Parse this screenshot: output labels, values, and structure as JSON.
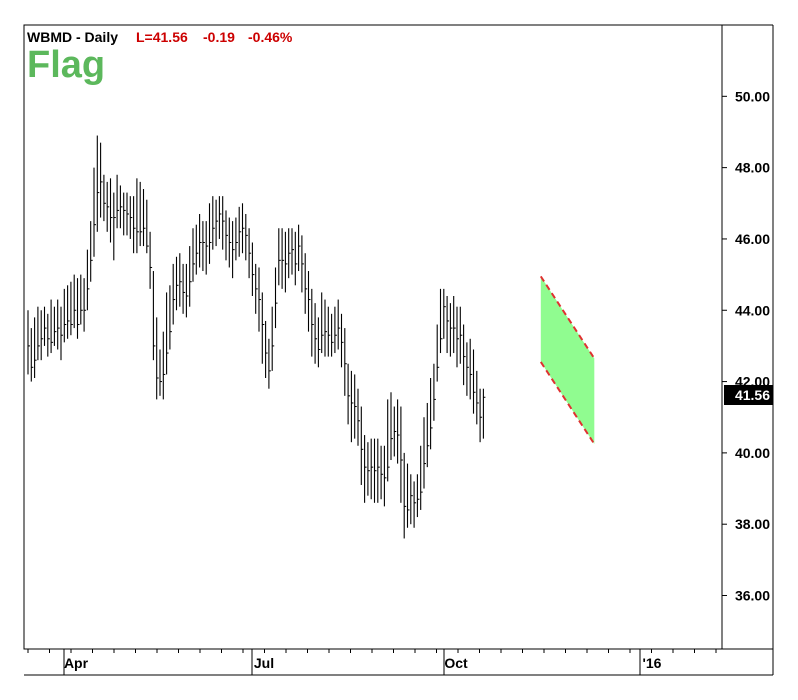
{
  "header": {
    "ticker": "WBMD - Daily",
    "last": "L=41.56",
    "change": "-0.19",
    "change_pct": "-0.46%"
  },
  "pattern_label": "Flag",
  "chart_data": {
    "type": "ohlc",
    "title": "WBMD - Daily",
    "xlabel": "",
    "ylabel": "",
    "ylim": [
      34.5,
      52.0
    ],
    "y_ticks": [
      "36.00",
      "38.00",
      "40.00",
      "42.00",
      "44.00",
      "46.00",
      "48.00",
      "50.00"
    ],
    "x_ticks": [
      "Apr",
      "Jul",
      "Oct",
      "'16"
    ],
    "last_price": "41.56",
    "grid": false,
    "colors": {
      "bars": "#000000",
      "flag_fill": "#7CFC7C",
      "flag_lines": "#e03030",
      "label": "#5cb85c",
      "header_red": "#cc0000"
    },
    "flag": {
      "upper": [
        44.95,
        42.65
      ],
      "lower": [
        42.55,
        40.25
      ],
      "start_bar": 156,
      "end_bar": 171
    },
    "bars": [
      [
        43,
        44,
        42.2
      ],
      [
        42.4,
        43.5,
        42
      ],
      [
        42.6,
        43.8,
        42.1
      ],
      [
        43,
        44.1,
        42.6
      ],
      [
        43.2,
        44,
        42.6
      ],
      [
        43.5,
        44.1,
        43
      ],
      [
        43.2,
        43.9,
        42.7
      ],
      [
        43.1,
        44.3,
        42.8
      ],
      [
        43.4,
        44.1,
        43
      ],
      [
        43.5,
        44.3,
        42.9
      ],
      [
        43.3,
        44.1,
        42.6
      ],
      [
        43.6,
        44.6,
        43.1
      ],
      [
        43.7,
        44.7,
        43.2
      ],
      [
        43.6,
        44.8,
        43.3
      ],
      [
        44,
        45,
        43.5
      ],
      [
        43.6,
        44.9,
        43.2
      ],
      [
        44,
        45,
        43.6
      ],
      [
        44,
        44.9,
        43.4
      ],
      [
        44.6,
        45.7,
        44
      ],
      [
        45.4,
        46.5,
        44.8
      ],
      [
        46.4,
        48,
        45.5
      ],
      [
        47.3,
        48.9,
        46.2
      ],
      [
        47.6,
        48.7,
        46.6
      ],
      [
        47,
        47.8,
        46.5
      ],
      [
        46.9,
        47.6,
        46.2
      ],
      [
        46.6,
        47.7,
        45.9
      ],
      [
        46.6,
        47.3,
        45.4
      ],
      [
        46.8,
        47.8,
        46.3
      ],
      [
        46.9,
        47.5,
        46.3
      ],
      [
        46.8,
        47.3,
        46.1
      ],
      [
        46.7,
        47.3,
        46.1
      ],
      [
        46.6,
        47.2,
        46
      ],
      [
        46.3,
        47.2,
        45.6
      ],
      [
        46.2,
        47.7,
        45.6
      ],
      [
        46.2,
        47.6,
        45.8
      ],
      [
        46.3,
        47.4,
        45.8
      ],
      [
        45.8,
        47.1,
        45.6
      ],
      [
        45.2,
        46.2,
        44.6
      ],
      [
        43,
        45.1,
        42.6
      ],
      [
        42.1,
        43.8,
        41.5
      ],
      [
        42,
        42.9,
        41.6
      ],
      [
        42.2,
        43.4,
        41.5
      ],
      [
        42.8,
        44.5,
        42.2
      ],
      [
        43.4,
        44.7,
        42.9
      ],
      [
        44.3,
        45.3,
        43.6
      ],
      [
        44.7,
        45.5,
        44
      ],
      [
        44.8,
        45.6,
        44.1
      ],
      [
        44.5,
        45.3,
        43.9
      ],
      [
        44.4,
        45.3,
        43.8
      ],
      [
        44.8,
        45.8,
        44.1
      ],
      [
        45.3,
        46.3,
        44.8
      ],
      [
        45.6,
        46.4,
        45
      ],
      [
        45.9,
        46.7,
        45.2
      ],
      [
        45.9,
        46.5,
        45.1
      ],
      [
        45.8,
        46.5,
        45
      ],
      [
        45.9,
        47,
        45.3
      ],
      [
        46.3,
        47.2,
        45.7
      ],
      [
        46.5,
        47.1,
        45.8
      ],
      [
        46.7,
        47.2,
        46
      ],
      [
        46.5,
        47.2,
        45.7
      ],
      [
        46.1,
        46.8,
        45.4
      ],
      [
        45.9,
        46.6,
        45.2
      ],
      [
        45.7,
        46.5,
        44.9
      ],
      [
        45.9,
        46.6,
        45.4
      ],
      [
        46.2,
        46.9,
        45.5
      ],
      [
        46.3,
        47,
        45.6
      ],
      [
        46.1,
        46.7,
        45.4
      ],
      [
        45.6,
        46.3,
        44.9
      ],
      [
        45,
        45.9,
        44.4
      ],
      [
        44.6,
        45.3,
        43.9
      ],
      [
        44.3,
        45.2,
        43.4
      ],
      [
        43.6,
        44.5,
        42.5
      ],
      [
        42.8,
        43.7,
        42.1
      ],
      [
        42.3,
        43.2,
        41.8
      ],
      [
        43,
        44.1,
        42.3
      ],
      [
        44.2,
        45.2,
        43.5
      ],
      [
        45.4,
        46.3,
        44.7
      ],
      [
        45.4,
        46.3,
        44.6
      ],
      [
        45.3,
        46.2,
        44.5
      ],
      [
        45.6,
        46.3,
        44.9
      ],
      [
        45.7,
        46.3,
        45
      ],
      [
        45.3,
        46.2,
        44.7
      ],
      [
        45.8,
        46.4,
        45.1
      ],
      [
        45.3,
        46.1,
        44.5
      ],
      [
        44.6,
        45.6,
        43.9
      ],
      [
        44.3,
        45.1,
        43.4
      ],
      [
        43.6,
        44.6,
        42.7
      ],
      [
        43.2,
        44.2,
        42.5
      ],
      [
        42.9,
        43.8,
        42.4
      ],
      [
        43.3,
        44.5,
        42.8
      ],
      [
        43.4,
        44.3,
        42.7
      ],
      [
        43.3,
        44.1,
        42.7
      ],
      [
        43.1,
        43.9,
        42.7
      ],
      [
        43.3,
        44.1,
        42.8
      ],
      [
        43.5,
        44.3,
        42.9
      ],
      [
        43.1,
        43.9,
        42.4
      ],
      [
        42.5,
        43.5,
        41.6
      ],
      [
        41.6,
        42.5,
        40.8
      ],
      [
        41.4,
        42.3,
        40.3
      ],
      [
        41.3,
        42.2,
        40.4
      ],
      [
        40.9,
        41.8,
        40.2
      ],
      [
        40.1,
        41.3,
        39.1
      ],
      [
        39.6,
        40.5,
        38.6
      ],
      [
        39.5,
        40.3,
        38.8
      ],
      [
        39.6,
        40.4,
        38.7
      ],
      [
        39.5,
        40.4,
        38.6
      ],
      [
        39.6,
        40.4,
        38.6
      ],
      [
        39.4,
        40.2,
        38.7
      ],
      [
        39.3,
        40.2,
        38.5
      ],
      [
        39.6,
        41.5,
        39.2
      ],
      [
        40.4,
        41.7,
        39.8
      ],
      [
        40.6,
        41.3,
        39.9
      ],
      [
        40.5,
        41.5,
        39.7
      ],
      [
        39.8,
        41.3,
        38.6
      ],
      [
        38.5,
        40,
        37.6
      ],
      [
        38.4,
        39.7,
        37.9
      ],
      [
        38.8,
        39.4,
        38
      ],
      [
        38.6,
        39.2,
        37.9
      ],
      [
        38.7,
        39.4,
        38.2
      ],
      [
        38.9,
        40.2,
        38.4
      ],
      [
        39.7,
        41,
        39
      ],
      [
        40.2,
        41.4,
        39.6
      ],
      [
        40.7,
        42.1,
        40.1
      ],
      [
        41.5,
        42.5,
        40.9
      ],
      [
        42.4,
        43.6,
        42
      ],
      [
        43.2,
        44.6,
        42.8
      ],
      [
        44.1,
        44.6,
        43.2
      ],
      [
        43.7,
        44.4,
        42.8
      ],
      [
        43.5,
        44.2,
        42.7
      ],
      [
        43.5,
        44.4,
        42.8
      ],
      [
        43.2,
        44.1,
        42.4
      ],
      [
        43.3,
        44.1,
        42.5
      ],
      [
        42.7,
        43.6,
        41.9
      ],
      [
        42.4,
        43.1,
        41.6
      ],
      [
        42.2,
        43.2,
        41.5
      ],
      [
        41.7,
        42.9,
        41.1
      ],
      [
        41.4,
        42.3,
        40.8
      ],
      [
        41,
        41.8,
        40.3
      ],
      [
        41.56,
        41.8,
        40.4
      ]
    ],
    "bar_start_day": 0
  }
}
